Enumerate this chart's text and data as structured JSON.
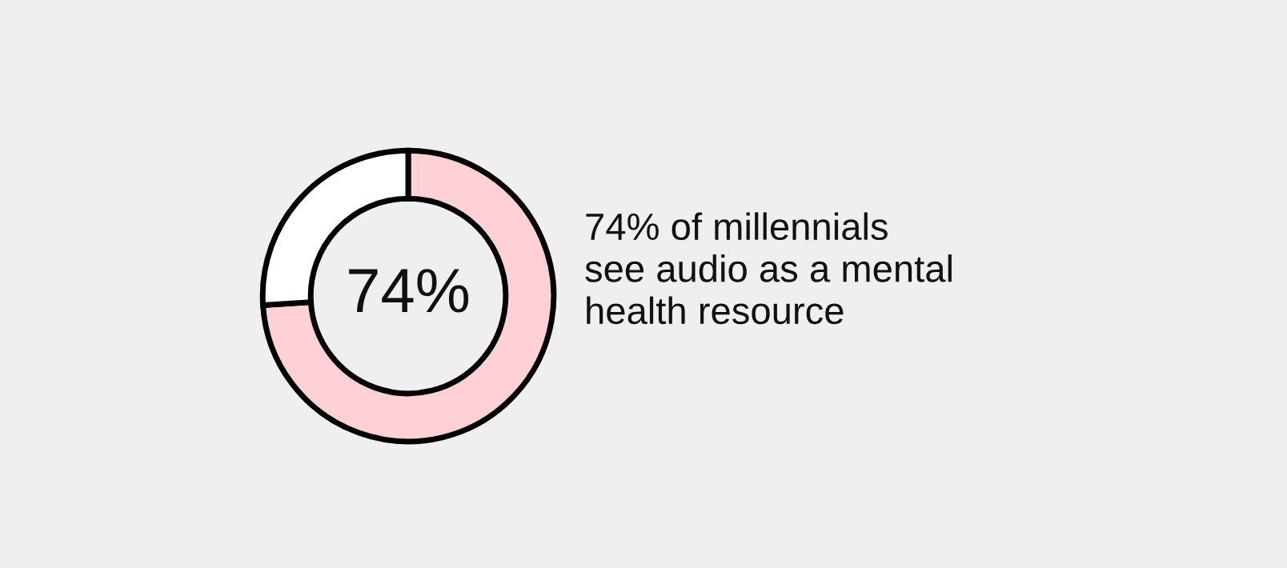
{
  "chart_data": {
    "type": "donut",
    "categories": [
      null,
      null
    ],
    "values": [
      74,
      26
    ],
    "colors": [
      "#ffd1d6",
      "#ffffff"
    ],
    "value_labels": [
      "74%",
      null
    ],
    "annotations": [
      "74% of millennials\nsee audio as a mental\nhealth resource"
    ]
  }
}
